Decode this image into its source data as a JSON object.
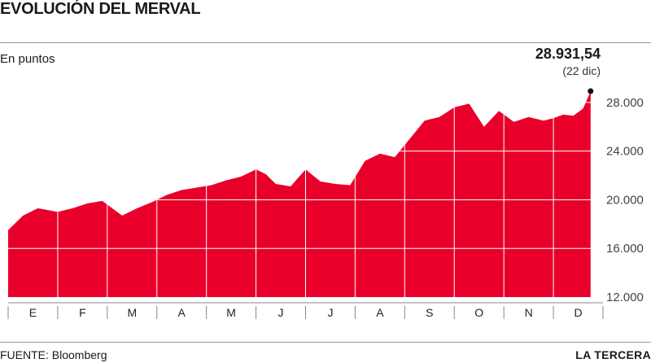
{
  "header": {
    "title": "EVOLUCIÓN DEL MERVAL",
    "subtitle": "En puntos",
    "last_value": "28.931,54",
    "last_date": "(22 dic)"
  },
  "footer": {
    "source": "FUENTE: Bloomberg",
    "brand": "LA TERCERA"
  },
  "colors": {
    "area": "#e8002a",
    "grid": "#ffffff",
    "axis": "#888888"
  },
  "chart_data": {
    "type": "area",
    "title": "EVOLUCIÓN DEL MERVAL",
    "ylabel": "En puntos",
    "ylim": [
      12000,
      30000
    ],
    "yticks": [
      12000,
      16000,
      20000,
      24000,
      28000
    ],
    "ytick_labels": [
      "12.000",
      "16.000",
      "20.000",
      "24.000",
      "28.000"
    ],
    "months": [
      "E",
      "F",
      "M",
      "A",
      "M",
      "J",
      "J",
      "A",
      "S",
      "O",
      "N",
      "D"
    ],
    "series": [
      {
        "x": [
          0,
          0.3,
          0.6,
          1.0,
          1.3,
          1.6,
          1.9,
          2.3,
          2.6,
          2.9,
          3.2,
          3.5,
          3.8,
          4.1,
          4.4,
          4.7,
          5.0,
          5.2,
          5.4,
          5.7,
          6.0,
          6.3,
          6.6,
          6.9,
          7.2,
          7.5,
          7.8,
          8.1,
          8.4,
          8.7,
          9.0,
          9.3,
          9.6,
          9.9,
          10.2,
          10.5,
          10.8,
          11.0,
          11.2,
          11.4,
          11.6,
          11.75
        ],
        "y": [
          17500,
          18700,
          19300,
          19000,
          19300,
          19700,
          19900,
          18700,
          19300,
          19800,
          20400,
          20800,
          21000,
          21200,
          21600,
          21900,
          22500,
          22100,
          21300,
          21100,
          22500,
          21500,
          21300,
          21200,
          23200,
          23800,
          23500,
          25000,
          26500,
          26800,
          27600,
          27900,
          26000,
          27300,
          26400,
          26800,
          26500,
          26700,
          27000,
          26900,
          27500,
          28931.54
        ]
      }
    ]
  }
}
